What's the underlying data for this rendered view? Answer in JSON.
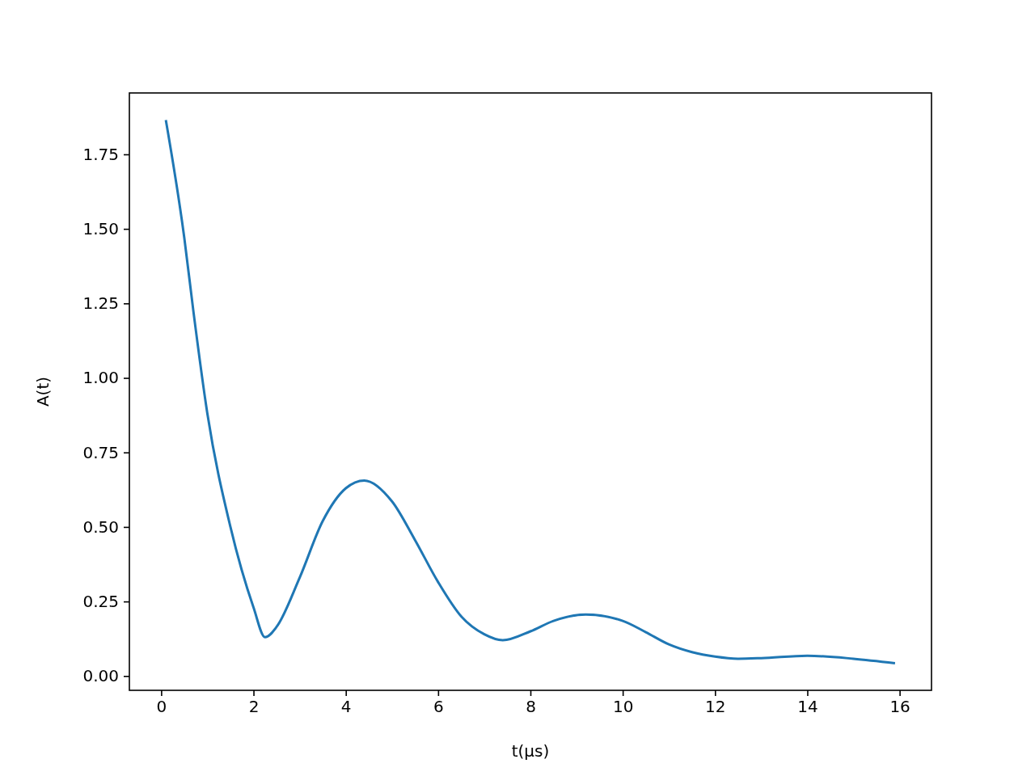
{
  "chart_data": {
    "type": "line",
    "xlabel": "t(μs)",
    "ylabel": "A(t)",
    "x": [
      0.1,
      0.5,
      0.7,
      1.0,
      1.5,
      2.0,
      2.25,
      2.5,
      3.0,
      3.5,
      4.0,
      4.4,
      5.0,
      5.5,
      6.0,
      6.5,
      7.0,
      7.4,
      8.0,
      8.5,
      9.2,
      10.0,
      10.5,
      11.0,
      11.5,
      12.0,
      12.5,
      13.0,
      14.0,
      15.0,
      15.9
    ],
    "series": [
      {
        "color": "#1f77b4",
        "values": [
          1.865,
          1.47,
          1.22,
          0.88,
          0.5,
          0.23,
          0.13,
          0.165,
          0.33,
          0.52,
          0.63,
          0.656,
          0.586,
          0.456,
          0.315,
          0.2,
          0.14,
          0.12,
          0.15,
          0.185,
          0.206,
          0.185,
          0.147,
          0.106,
          0.08,
          0.065,
          0.058,
          0.06,
          0.068,
          0.058,
          0.043
        ]
      }
    ],
    "xlim": [
      -0.69,
      16.69
    ],
    "ylim": [
      -0.048,
      1.956
    ],
    "xticks": [
      0,
      2,
      4,
      6,
      8,
      10,
      12,
      14,
      16
    ],
    "yticks": [
      {
        "value": 0,
        "label": "0.00"
      },
      {
        "value": 0.25,
        "label": "0.25"
      },
      {
        "value": 0.5,
        "label": "0.50"
      },
      {
        "value": 0.75,
        "label": "0.75"
      },
      {
        "value": 1,
        "label": "1.00"
      },
      {
        "value": 1.25,
        "label": "1.25"
      },
      {
        "value": 1.5,
        "label": "1.50"
      },
      {
        "value": 1.75,
        "label": "1.75"
      }
    ],
    "grid": false,
    "marker": "none",
    "line_style": "solid"
  }
}
